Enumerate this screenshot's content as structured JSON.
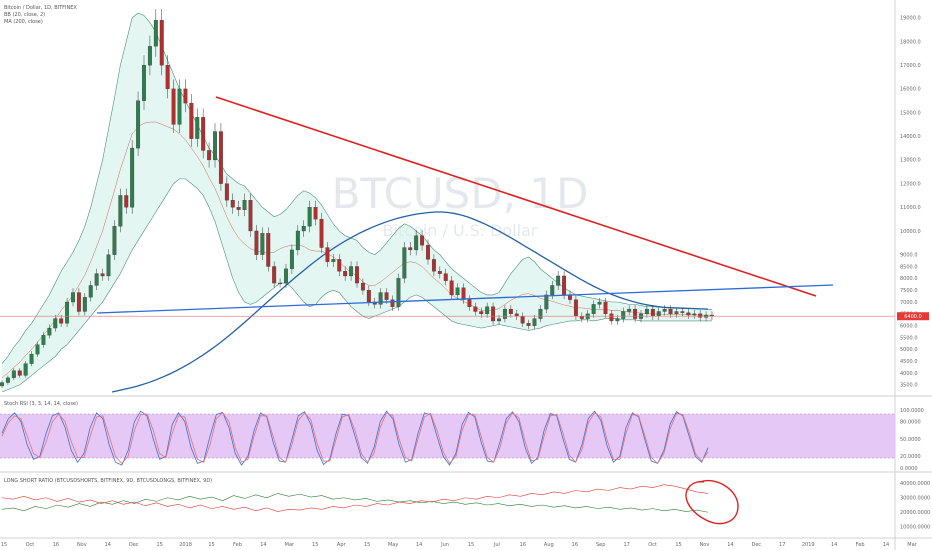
{
  "chart_data": [
    {
      "type": "candlestick",
      "title": "Bitcoin / Dollar, 1D, BITFINEX",
      "indicators": [
        "BB (20, close, 2)",
        "MA (200, close)"
      ],
      "watermark": {
        "symbol": "BTCUSD, 1D",
        "name": "Bitcoin / U.S. Dollar"
      },
      "price_scale": [
        "19000.0",
        "18000.0",
        "17000.0",
        "16000.0",
        "15000.0",
        "14000.0",
        "13000.0",
        "12000.0",
        "11000.0",
        "10000.0",
        "9000.0",
        "8500.0",
        "8000.0",
        "7500.0",
        "7000.0",
        "6500.0",
        "6000.0",
        "5500.0",
        "5000.0",
        "4500.0",
        "4000.0",
        "3500.0"
      ],
      "last_price": "6400.0",
      "time_labels": [
        "15",
        "Oct",
        "16",
        "Nov",
        "14",
        "Dec",
        "15",
        "2018",
        "15",
        "Feb",
        "14",
        "Mar",
        "15",
        "Apr",
        "15",
        "May",
        "14",
        "Jun",
        "15",
        "Jul",
        "16",
        "Aug",
        "16",
        "Sep",
        "17",
        "Oct",
        "15",
        "Nov",
        "14",
        "Dec",
        "17",
        "2019",
        "14",
        "Feb",
        "14",
        "Mar"
      ],
      "ylim": [
        3200,
        19500
      ],
      "close": [
        3600,
        3800,
        4100,
        3900,
        4400,
        4800,
        5200,
        5600,
        5900,
        6300,
        6100,
        7000,
        7400,
        6600,
        7200,
        7700,
        8200,
        8100,
        9000,
        10200,
        11500,
        11000,
        13500,
        15500,
        17000,
        17800,
        18900,
        17000,
        16000,
        14500,
        16000,
        15400,
        13900,
        14800,
        13400,
        13000,
        14200,
        12000,
        11300,
        11000,
        10900,
        11300,
        10000,
        9000,
        9900,
        8500,
        7800,
        7800,
        8400,
        9200,
        10000,
        10200,
        11000,
        10500,
        9300,
        8700,
        8800,
        8300,
        8100,
        8500,
        7800,
        7500,
        7000,
        6900,
        7400,
        7100,
        6800,
        8000,
        9300,
        9200,
        9800,
        9400,
        8800,
        8300,
        8200,
        7900,
        7300,
        7600,
        7100,
        6800,
        6600,
        6500,
        6800,
        6200,
        6300,
        6700,
        6500,
        6400,
        6100,
        6000,
        6300,
        6700,
        7300,
        7700,
        8100,
        7300,
        7100,
        6400,
        6300,
        6500,
        6900,
        7000,
        6500,
        6200,
        6300,
        6600,
        6700,
        6300,
        6500,
        6700,
        6400,
        6600,
        6700,
        6500,
        6600,
        6550,
        6450,
        6500,
        6350,
        6450,
        6400
      ],
      "bb_upper": [
        4400,
        4700,
        5100,
        5400,
        5800,
        6100,
        6500,
        6900,
        7300,
        7800,
        8300,
        8700,
        9100,
        9600,
        10200,
        11000,
        12000,
        13000,
        14300,
        15600,
        17000,
        18000,
        19000,
        19200,
        19100,
        18800,
        18400,
        17800,
        17200,
        16600,
        16000,
        15500,
        15000,
        14500,
        14000,
        13500,
        13200,
        12800,
        12400,
        12200,
        12000,
        11900,
        11600,
        11300,
        11000,
        10800,
        10600,
        10700,
        10900,
        11200,
        11500,
        11700,
        11600,
        11400,
        11100,
        10700,
        10300,
        10000,
        9800,
        9700,
        9600,
        9300,
        9100,
        9000,
        9200,
        9500,
        9800,
        10100,
        10300,
        10200,
        10000,
        9800,
        9500,
        9200,
        9000,
        8700,
        8400,
        8200,
        8000,
        7800,
        7600,
        7400,
        7300,
        7300,
        7400,
        7800,
        8200,
        8500,
        8800,
        8900,
        8700,
        8400,
        8200,
        8000,
        7800,
        7600,
        7450,
        7300,
        7250,
        7200,
        7150,
        7100,
        7050,
        7000,
        7000,
        6950,
        6900,
        6900,
        6850,
        6800,
        6800,
        6780,
        6760,
        6750,
        6740,
        6730,
        6720,
        6710,
        6700,
        6690,
        6680
      ],
      "bb_lower": [
        3200,
        3300,
        3400,
        3500,
        3700,
        3900,
        4100,
        4300,
        4500,
        4700,
        5000,
        5200,
        5500,
        5800,
        6100,
        6400,
        6700,
        7000,
        7400,
        7800,
        8200,
        8700,
        9200,
        9600,
        10000,
        10400,
        10800,
        11200,
        11600,
        12000,
        12200,
        12200,
        12000,
        11800,
        11500,
        11000,
        10400,
        9600,
        8800,
        8000,
        7400,
        7000,
        6900,
        7000,
        7200,
        7400,
        7600,
        7800,
        7800,
        7600,
        7300,
        7000,
        6800,
        6900,
        7200,
        7400,
        7500,
        7400,
        7100,
        6800,
        6600,
        6400,
        6300,
        6400,
        6500,
        6600,
        6700,
        6800,
        7000,
        7200,
        7300,
        7200,
        7000,
        6800,
        6600,
        6400,
        6200,
        6100,
        6050,
        6000,
        5950,
        5900,
        5950,
        6000,
        6050,
        6000,
        5950,
        5900,
        5850,
        5800,
        5850,
        5900,
        6000,
        6050,
        6100,
        6150,
        6200,
        6200,
        6250,
        6250,
        6200,
        6250,
        6300,
        6300,
        6300,
        6250,
        6250,
        6250,
        6200,
        6200,
        6200,
        6200,
        6200,
        6200,
        6200,
        6200,
        6200,
        6200,
        6200,
        6200,
        6200
      ],
      "ma200": [
        3200,
        3260,
        3320,
        3380,
        3450,
        3530,
        3620,
        3720,
        3830,
        3950,
        4080,
        4220,
        4370,
        4530,
        4700,
        4880,
        5070,
        5270,
        5480,
        5700,
        5930,
        6160,
        6400,
        6640,
        6880,
        7120,
        7360,
        7600,
        7830,
        8060,
        8280,
        8500,
        8710,
        8910,
        9100,
        9280,
        9450,
        9610,
        9760,
        9900,
        10030,
        10150,
        10260,
        10360,
        10450,
        10530,
        10600,
        10660,
        10710,
        10750,
        10780,
        10800,
        10800,
        10780,
        10740,
        10680,
        10600,
        10500,
        10390,
        10270,
        10140,
        10000,
        9850,
        9700,
        9540,
        9380,
        9220,
        9060,
        8900,
        8740,
        8580,
        8420,
        8260,
        8100,
        7950,
        7800,
        7660,
        7530,
        7410,
        7300,
        7200,
        7110,
        7030,
        6960,
        6900,
        6850,
        6810,
        6780,
        6760,
        6750,
        6740,
        6730,
        6720,
        6710,
        6700
      ]
    },
    {
      "type": "line",
      "title": "Stoch RSI (3, 3, 14, 14, close)",
      "ylim": [
        0,
        100
      ],
      "scale": [
        "100.0000",
        "80.0000",
        "50.0000",
        "20.0000",
        "0.0000"
      ],
      "values_k": [
        60,
        85,
        95,
        80,
        40,
        15,
        20,
        60,
        90,
        95,
        70,
        30,
        10,
        25,
        70,
        95,
        85,
        40,
        10,
        5,
        30,
        80,
        98,
        90,
        50,
        15,
        20,
        75,
        95,
        80,
        35,
        8,
        12,
        55,
        92,
        96,
        70,
        25,
        5,
        20,
        65,
        95,
        88,
        45,
        12,
        10,
        50,
        90,
        97,
        75,
        30,
        6,
        15,
        60,
        93,
        90,
        55,
        18,
        8,
        35,
        80,
        98,
        85,
        40,
        10,
        15,
        60,
        95,
        92,
        55,
        20,
        5,
        25,
        75,
        96,
        88,
        45,
        12,
        10,
        45,
        85,
        97,
        80,
        35,
        8,
        18,
        65,
        94,
        90,
        50,
        15,
        10,
        40,
        85,
        98,
        82,
        38,
        10,
        20,
        70,
        95,
        88,
        48,
        12,
        8,
        30,
        76,
        97,
        90,
        55,
        20,
        10,
        35
      ],
      "values_d": [
        55,
        78,
        90,
        85,
        55,
        25,
        18,
        45,
        80,
        93,
        80,
        45,
        18,
        18,
        55,
        88,
        90,
        55,
        20,
        8,
        20,
        65,
        92,
        93,
        65,
        25,
        18,
        60,
        90,
        88,
        50,
        15,
        10,
        40,
        85,
        95,
        80,
        35,
        10,
        15,
        55,
        90,
        90,
        55,
        18,
        10,
        40,
        82,
        95,
        83,
        42,
        12,
        12,
        50,
        88,
        92,
        65,
        25,
        10,
        25,
        70,
        95,
        90,
        50,
        18,
        12,
        50,
        88,
        94,
        65,
        28,
        8,
        20,
        65,
        92,
        92,
        55,
        18,
        10,
        35,
        78,
        95,
        86,
        45,
        12,
        15,
        55,
        90,
        92,
        60,
        22,
        10,
        32,
        78,
        95,
        88,
        48,
        15,
        15,
        60,
        92,
        90,
        55,
        18,
        8,
        25,
        68,
        94,
        92,
        62,
        25,
        12,
        28
      ]
    },
    {
      "type": "line",
      "title": "LONG SHORT RATIO (BTCUSDSHORTS, BITFINEX, 9D, BTCUSDLONGS, BITFINEX, 9D)",
      "scale": [
        "40000.0000",
        "30000.0000",
        "20000.0000",
        "10000.0000"
      ],
      "ylim": [
        5000,
        45000
      ],
      "series": [
        {
          "name": "",
          "color": "#2e7d32",
          "values": [
            22000,
            23000,
            21000,
            24000,
            22500,
            25000,
            23500,
            26000,
            24000,
            27000,
            25500,
            28000,
            26000,
            29000,
            27500,
            30000,
            28500,
            31000,
            29000,
            30500,
            28000,
            31500,
            29500,
            32000,
            30000,
            33000,
            31000,
            32500,
            30500,
            31500,
            29000,
            30000,
            28500,
            29500,
            27500,
            28500,
            27000,
            28000,
            26500,
            27500,
            26000,
            27000,
            25500,
            26500,
            25000,
            26000,
            24500,
            25500,
            24000,
            25000,
            23500,
            24500,
            23000,
            24000,
            22500,
            23500,
            22000,
            23000,
            21500,
            22500,
            21000,
            22000,
            20500,
            21500,
            20000
          ]
        },
        {
          "name": "",
          "color": "#e53935",
          "values": [
            30000,
            29000,
            31000,
            28500,
            30000,
            27500,
            29500,
            27000,
            28500,
            26000,
            28000,
            25500,
            27000,
            24500,
            26500,
            24000,
            25500,
            23000,
            25000,
            22500,
            24000,
            22000,
            23500,
            21000,
            23000,
            20500,
            22000,
            21500,
            23000,
            22000,
            24000,
            23000,
            25000,
            24000,
            26000,
            25000,
            27000,
            26000,
            28000,
            27000,
            29000,
            28000,
            30000,
            29000,
            31000,
            30000,
            32000,
            31000,
            33000,
            32000,
            34000,
            33000,
            35000,
            34000,
            36000,
            35000,
            37000,
            36000,
            38000,
            37000,
            39000,
            38000,
            36000,
            34000,
            33000
          ]
        }
      ]
    }
  ]
}
